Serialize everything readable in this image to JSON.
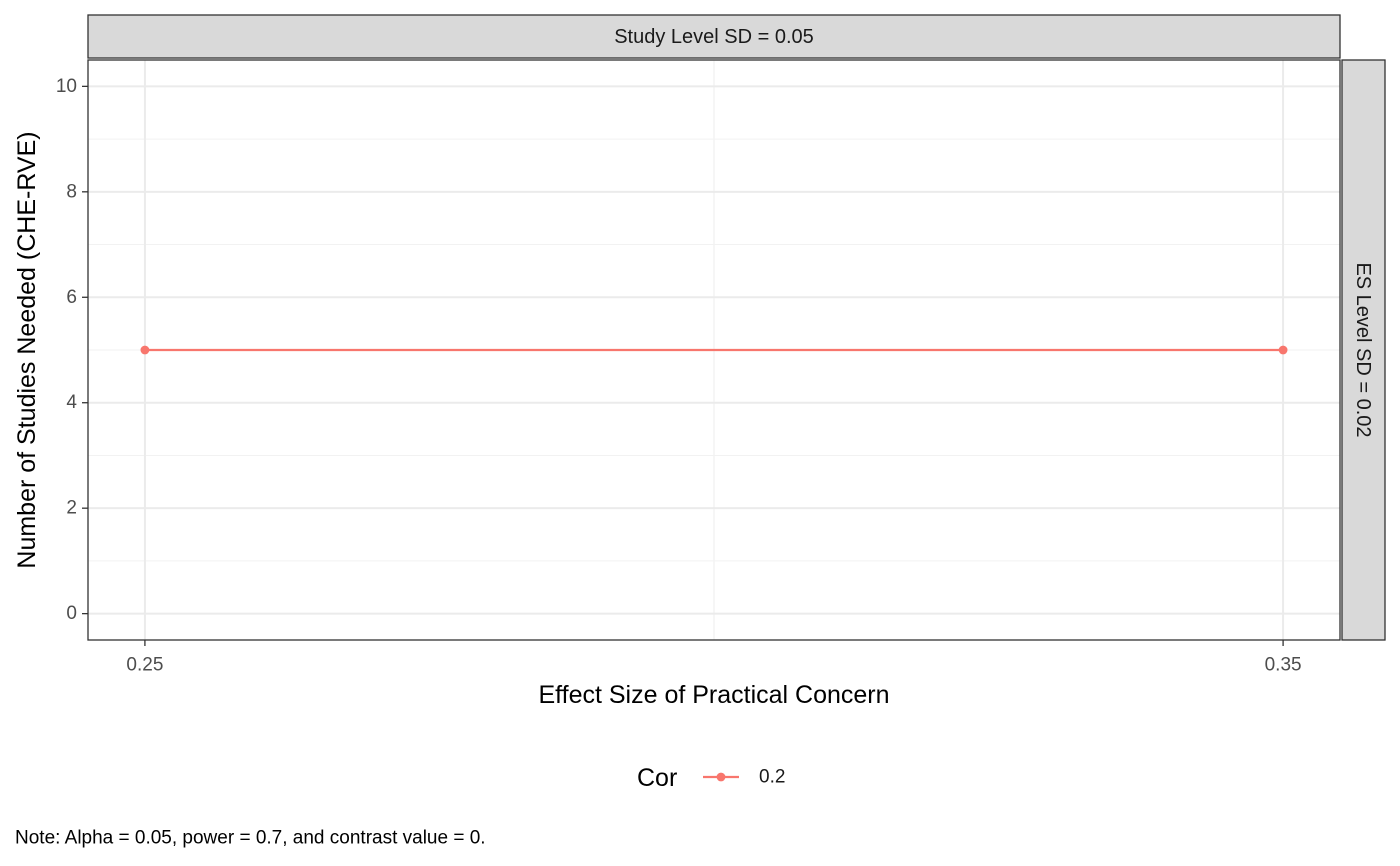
{
  "chart_data": {
    "type": "line",
    "facet_top_label": "Study Level SD = 0.05",
    "facet_right_label": "ES Level SD = 0.02",
    "xlabel": "Effect Size of Practical Concern",
    "ylabel": "Number of Studies Needed (CHE-RVE)",
    "x_ticks": [
      "0.25",
      "0.35"
    ],
    "x_tick_values": [
      0.25,
      0.35
    ],
    "y_ticks": [
      "0",
      "2",
      "4",
      "6",
      "8",
      "10"
    ],
    "y_tick_values": [
      0,
      2,
      4,
      6,
      8,
      10
    ],
    "xlim": [
      0.245,
      0.355
    ],
    "ylim": [
      -0.5,
      10.5
    ],
    "grid": true,
    "legend_position": "bottom",
    "legend_title": "Cor",
    "series": [
      {
        "name": "0.2",
        "color": "#F8766D",
        "x": [
          0.25,
          0.35
        ],
        "y": [
          5,
          5
        ]
      }
    ],
    "caption": "Note: Alpha = 0.05, power = 0.7, and contrast value = 0."
  }
}
